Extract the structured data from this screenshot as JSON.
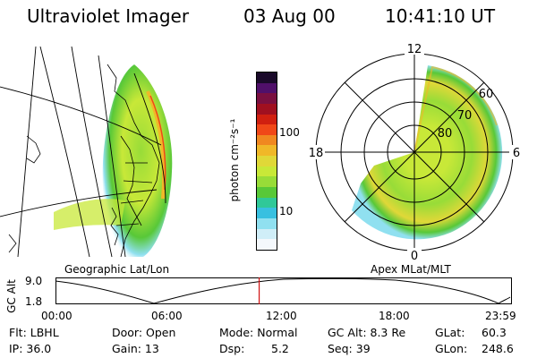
{
  "header": {
    "instrument": "Ultraviolet Imager",
    "date": "03 Aug 00",
    "time": "10:41:10 UT"
  },
  "panels": {
    "left_label": "Geographic Lat/Lon",
    "right_label": "Apex MLat/MLT"
  },
  "colorbar": {
    "unit_label": "photon cm⁻²s⁻¹",
    "tick_100": "100",
    "tick_10": "10",
    "colors": [
      "#1a0a2a",
      "#50106a",
      "#7a1040",
      "#a01020",
      "#d02010",
      "#f04818",
      "#f08820",
      "#f0b828",
      "#e0d838",
      "#c8e838",
      "#98dc38",
      "#58c838",
      "#30c898",
      "#38c0e0",
      "#90e0f0",
      "#d0eef8",
      "#f4f8fc"
    ]
  },
  "polar": {
    "mlt_labels": {
      "top": "12",
      "left": "18",
      "right": "6",
      "bottom": "0"
    },
    "lat_labels": [
      "60",
      "70",
      "80"
    ]
  },
  "timeline": {
    "ylabel": "GC Alt",
    "y_max": "9.0",
    "y_min": "1.8",
    "x_ticks": [
      "00:00",
      "06:00",
      "12:00",
      "18:00",
      "23:59"
    ],
    "marker_time_fraction": 0.446,
    "marker_color": "#d01010"
  },
  "footer": {
    "flt": "Flt: LBHL",
    "ip": "IP: 36.0",
    "door": "Door: Open",
    "gain": "Gain: 13",
    "mode": "Mode: Normal",
    "dsp_label": "Dsp:",
    "dsp_value": "5.2",
    "gcalt": "GC Alt: 8.3 Re",
    "seq": "Seq: 39",
    "glat_label": "GLat:",
    "glat_value": "60.3",
    "glon_label": "GLon:",
    "glon_value": "248.6"
  }
}
